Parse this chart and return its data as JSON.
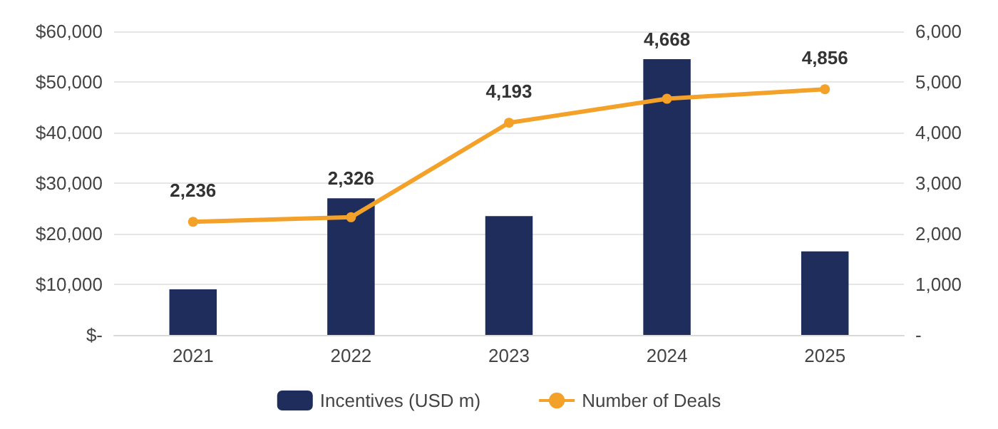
{
  "chart_data": {
    "type": "bar",
    "categories": [
      "2021",
      "2022",
      "2023",
      "2024",
      "2025"
    ],
    "series": [
      {
        "name": "Incentives (USD m)",
        "color": "#1f2d5c",
        "values": [
          9000,
          27000,
          23500,
          54500,
          16500
        ]
      },
      {
        "name": "Number of Deals",
        "type": "line",
        "axis": "y2",
        "color": "#f4a12a",
        "values": [
          2236,
          2326,
          4193,
          4668,
          4856
        ],
        "value_labels": [
          "2,236",
          "2,326",
          "4,193",
          "4,668",
          "4,856"
        ]
      }
    ],
    "ylim": [
      0,
      60000
    ],
    "yticks": [
      {
        "value": 0,
        "label": "$-"
      },
      {
        "value": 10000,
        "label": "$10,000"
      },
      {
        "value": 20000,
        "label": "$20,000"
      },
      {
        "value": 30000,
        "label": "$30,000"
      },
      {
        "value": 40000,
        "label": "$40,000"
      },
      {
        "value": 50000,
        "label": "$50,000"
      },
      {
        "value": 60000,
        "label": "$60,000"
      }
    ],
    "y2lim": [
      0,
      6000
    ],
    "y2ticks": [
      {
        "value": 0,
        "label": "-"
      },
      {
        "value": 1000,
        "label": "1,000"
      },
      {
        "value": 2000,
        "label": "2,000"
      },
      {
        "value": 3000,
        "label": "3,000"
      },
      {
        "value": 4000,
        "label": "4,000"
      },
      {
        "value": 5000,
        "label": "5,000"
      },
      {
        "value": 6000,
        "label": "6,000"
      }
    ],
    "grid": "y",
    "legend": "bottom",
    "marker": "circle",
    "line_style": "solid"
  }
}
